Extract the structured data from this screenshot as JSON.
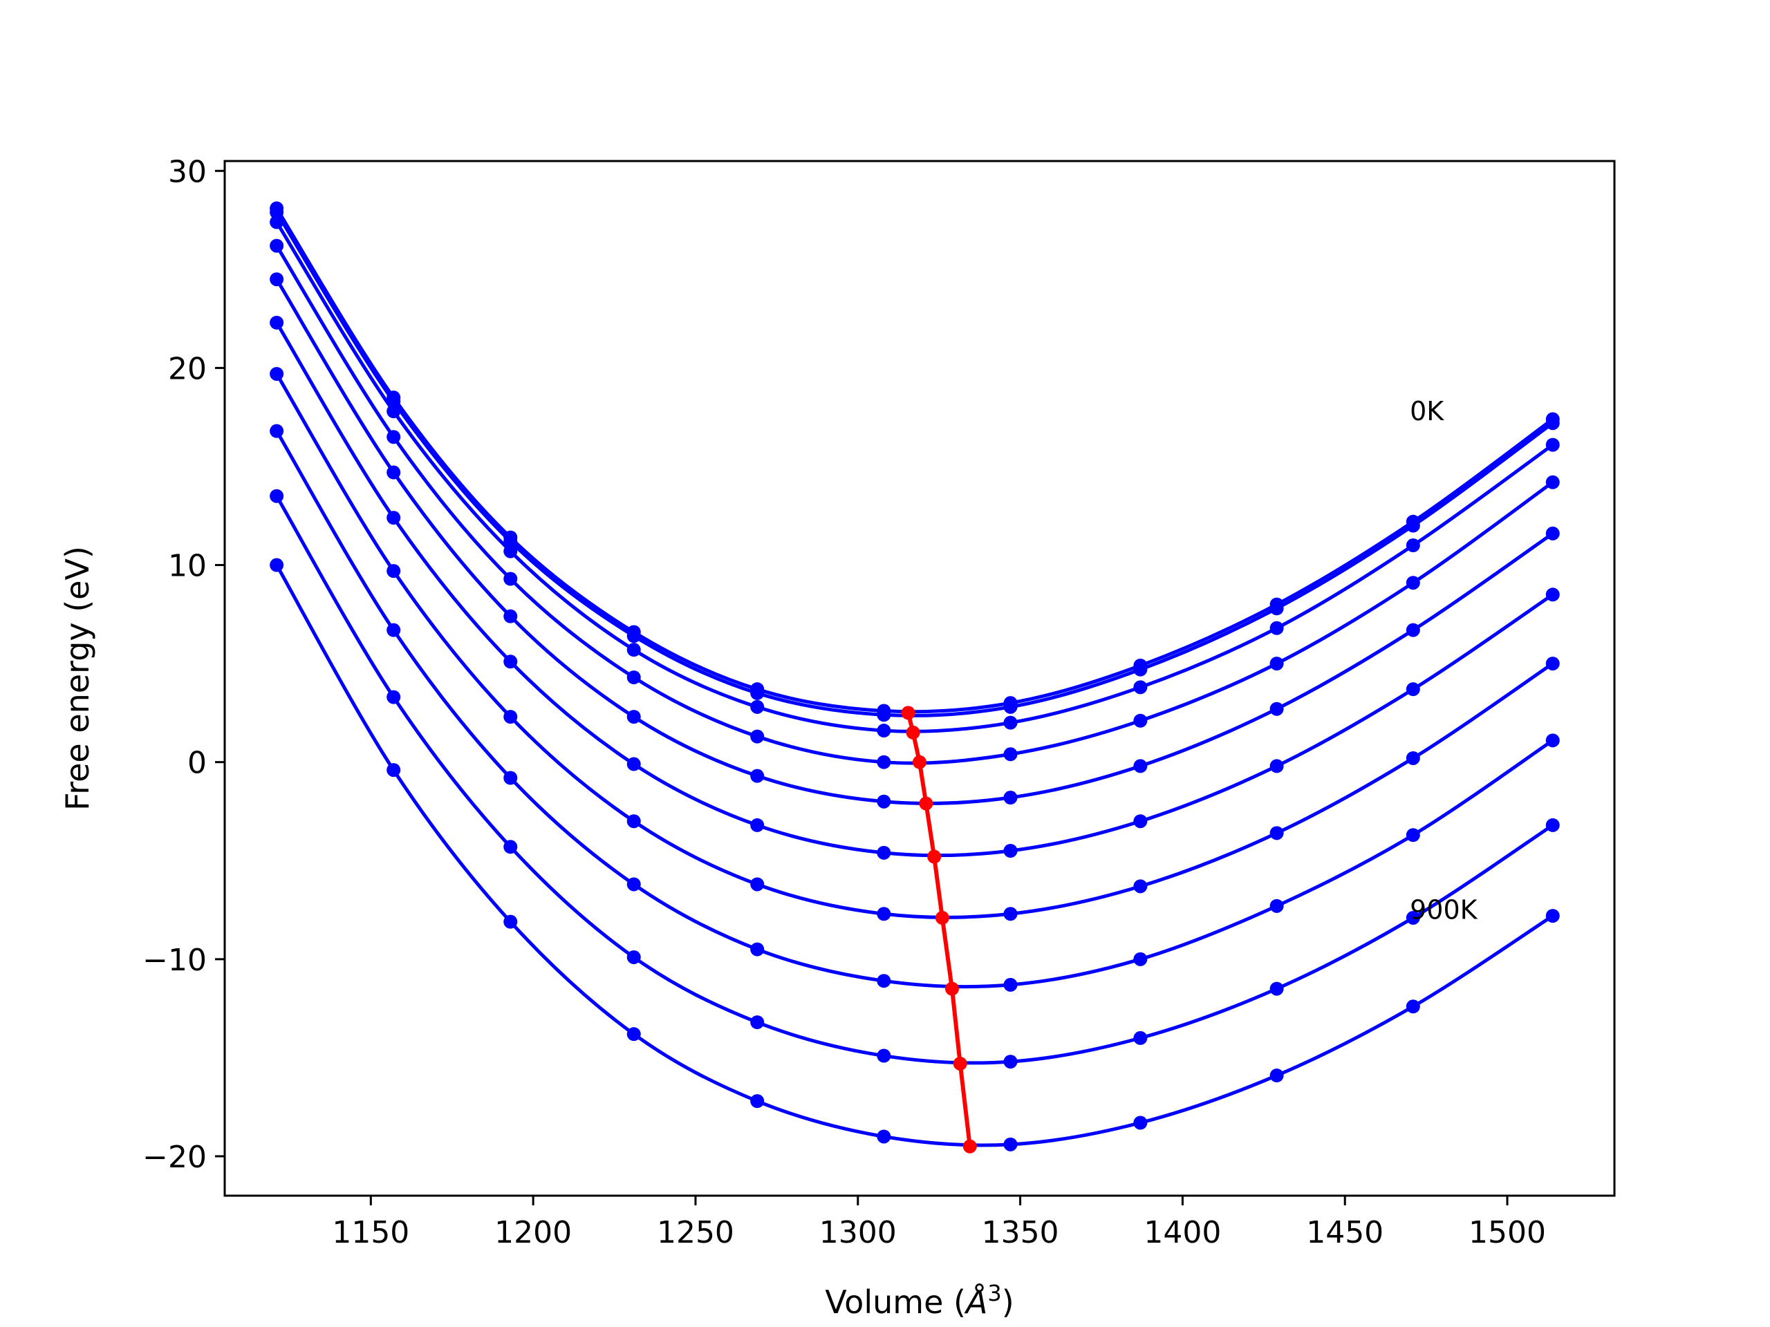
{
  "chart_data": {
    "type": "line",
    "title": "",
    "xlabel": "Volume (Å³)",
    "xlabel_parts": {
      "text": "Volume (",
      "symbol": "Å",
      "exponent": "3",
      "close": ")"
    },
    "ylabel": "Free energy (eV)",
    "xlim": [
      1105,
      1533
    ],
    "ylim": [
      -22,
      30.5
    ],
    "xticks": [
      1150,
      1200,
      1250,
      1300,
      1350,
      1400,
      1450,
      1500
    ],
    "yticks": [
      30,
      20,
      10,
      0,
      -10,
      -20
    ],
    "ytick_labels": [
      "30",
      "20",
      "10",
      "0",
      "−10",
      "−20"
    ],
    "grid": false,
    "colors": {
      "curves": "#0000ff",
      "minimum": "#ff0000"
    },
    "x": [
      1121,
      1157,
      1193,
      1231,
      1269,
      1308,
      1347,
      1387,
      1429,
      1471,
      1514
    ],
    "series": [
      {
        "values": [
          28.1,
          18.5,
          11.4,
          6.6,
          3.7,
          2.6,
          3.0,
          4.9,
          8.0,
          12.2,
          17.4
        ]
      },
      {
        "values": [
          27.9,
          18.3,
          11.2,
          6.4,
          3.5,
          2.4,
          2.8,
          4.7,
          7.8,
          12.0,
          17.2
        ]
      },
      {
        "values": [
          27.4,
          17.8,
          10.7,
          5.7,
          2.8,
          1.6,
          2.0,
          3.8,
          6.8,
          11.0,
          16.1
        ]
      },
      {
        "values": [
          26.2,
          16.5,
          9.3,
          4.3,
          1.3,
          0.0,
          0.4,
          2.1,
          5.0,
          9.1,
          14.2
        ]
      },
      {
        "values": [
          24.5,
          14.7,
          7.4,
          2.3,
          -0.7,
          -2.0,
          -1.8,
          -0.2,
          2.7,
          6.7,
          11.6
        ]
      },
      {
        "values": [
          22.3,
          12.4,
          5.1,
          -0.1,
          -3.2,
          -4.6,
          -4.5,
          -3.0,
          -0.2,
          3.7,
          8.5
        ]
      },
      {
        "values": [
          19.7,
          9.7,
          2.3,
          -3.0,
          -6.2,
          -7.7,
          -7.7,
          -6.3,
          -3.6,
          0.2,
          5.0
        ]
      },
      {
        "values": [
          16.8,
          6.7,
          -0.8,
          -6.2,
          -9.5,
          -11.1,
          -11.3,
          -10.0,
          -7.3,
          -3.7,
          1.1
        ]
      },
      {
        "values": [
          13.5,
          3.3,
          -4.3,
          -9.9,
          -13.2,
          -14.9,
          -15.2,
          -14.0,
          -11.5,
          -7.9,
          -3.2
        ]
      },
      {
        "values": [
          10.0,
          -0.4,
          -8.1,
          -13.8,
          -17.2,
          -19.0,
          -19.4,
          -18.3,
          -15.9,
          -12.4,
          -7.8
        ]
      }
    ],
    "minimum_line": {
      "x": [
        1315.5,
        1317,
        1319,
        1321,
        1323.5,
        1326,
        1329,
        1331.5,
        1334.5
      ],
      "y": [
        2.5,
        1.5,
        0.0,
        -2.1,
        -4.8,
        -7.9,
        -11.5,
        -15.3,
        -19.5
      ]
    },
    "annotations": [
      {
        "text": "0K",
        "x": 1470,
        "y": 17.8
      },
      {
        "text": "900K",
        "x": 1470,
        "y": -7.5
      }
    ]
  }
}
